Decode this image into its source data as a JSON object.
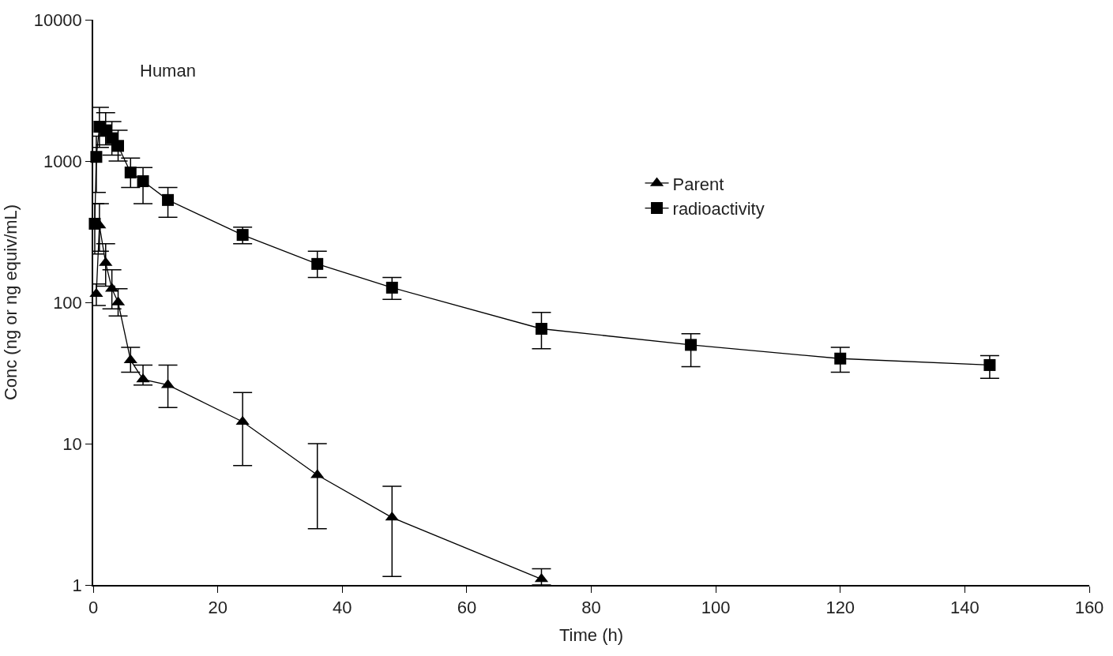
{
  "chart_data": {
    "type": "line",
    "xlabel": "Time (h)",
    "ylabel": "Conc (ng or ng equiv/mL)",
    "annotations": [
      "Human"
    ],
    "log": "y",
    "legend": "top right",
    "line_style": "solid",
    "xlim": [
      0,
      160
    ],
    "xticks": [
      0,
      20,
      40,
      60,
      80,
      100,
      120,
      140,
      160
    ],
    "ylim": [
      1,
      10000
    ],
    "yticks": [
      1,
      10,
      100,
      1000,
      10000
    ],
    "series": [
      {
        "name": "Parent",
        "color": "#000000",
        "marker": "triangle",
        "x": [
          0.5,
          1,
          2,
          3,
          4,
          6,
          8,
          12,
          24,
          36,
          48,
          72
        ],
        "values": [
          115,
          350,
          190,
          125,
          100,
          39,
          28.5,
          26,
          14.3,
          6.0,
          3.0,
          1.1
        ],
        "errors": [
          [
            95,
            135
          ],
          [
            230,
            500
          ],
          [
            130,
            260
          ],
          [
            90,
            170
          ],
          [
            80,
            125
          ],
          [
            32,
            48
          ],
          [
            26,
            36
          ],
          [
            18,
            36
          ],
          [
            7,
            23
          ],
          [
            2.5,
            10
          ],
          [
            1.15,
            5
          ],
          [
            1,
            1.3
          ]
        ]
      },
      {
        "name": "radioactivity",
        "color": "#000000",
        "marker": "square",
        "x": [
          0.25,
          0.5,
          1,
          2,
          3,
          4,
          6,
          8,
          12,
          24,
          36,
          48,
          72,
          96,
          120,
          144
        ],
        "values": [
          360,
          1070,
          1750,
          1650,
          1450,
          1280,
          830,
          720,
          530,
          300,
          187,
          127,
          65,
          50,
          40,
          36
        ],
        "errors": [
          [
            220,
            500
          ],
          [
            600,
            1500
          ],
          [
            1250,
            2400
          ],
          [
            1300,
            2200
          ],
          [
            1100,
            1900
          ],
          [
            1000,
            1650
          ],
          [
            650,
            1050
          ],
          [
            500,
            900
          ],
          [
            400,
            650
          ],
          [
            260,
            340
          ],
          [
            150,
            230
          ],
          [
            105,
            150
          ],
          [
            47,
            85
          ],
          [
            35,
            60
          ],
          [
            32,
            48
          ],
          [
            29,
            42
          ]
        ]
      }
    ]
  }
}
